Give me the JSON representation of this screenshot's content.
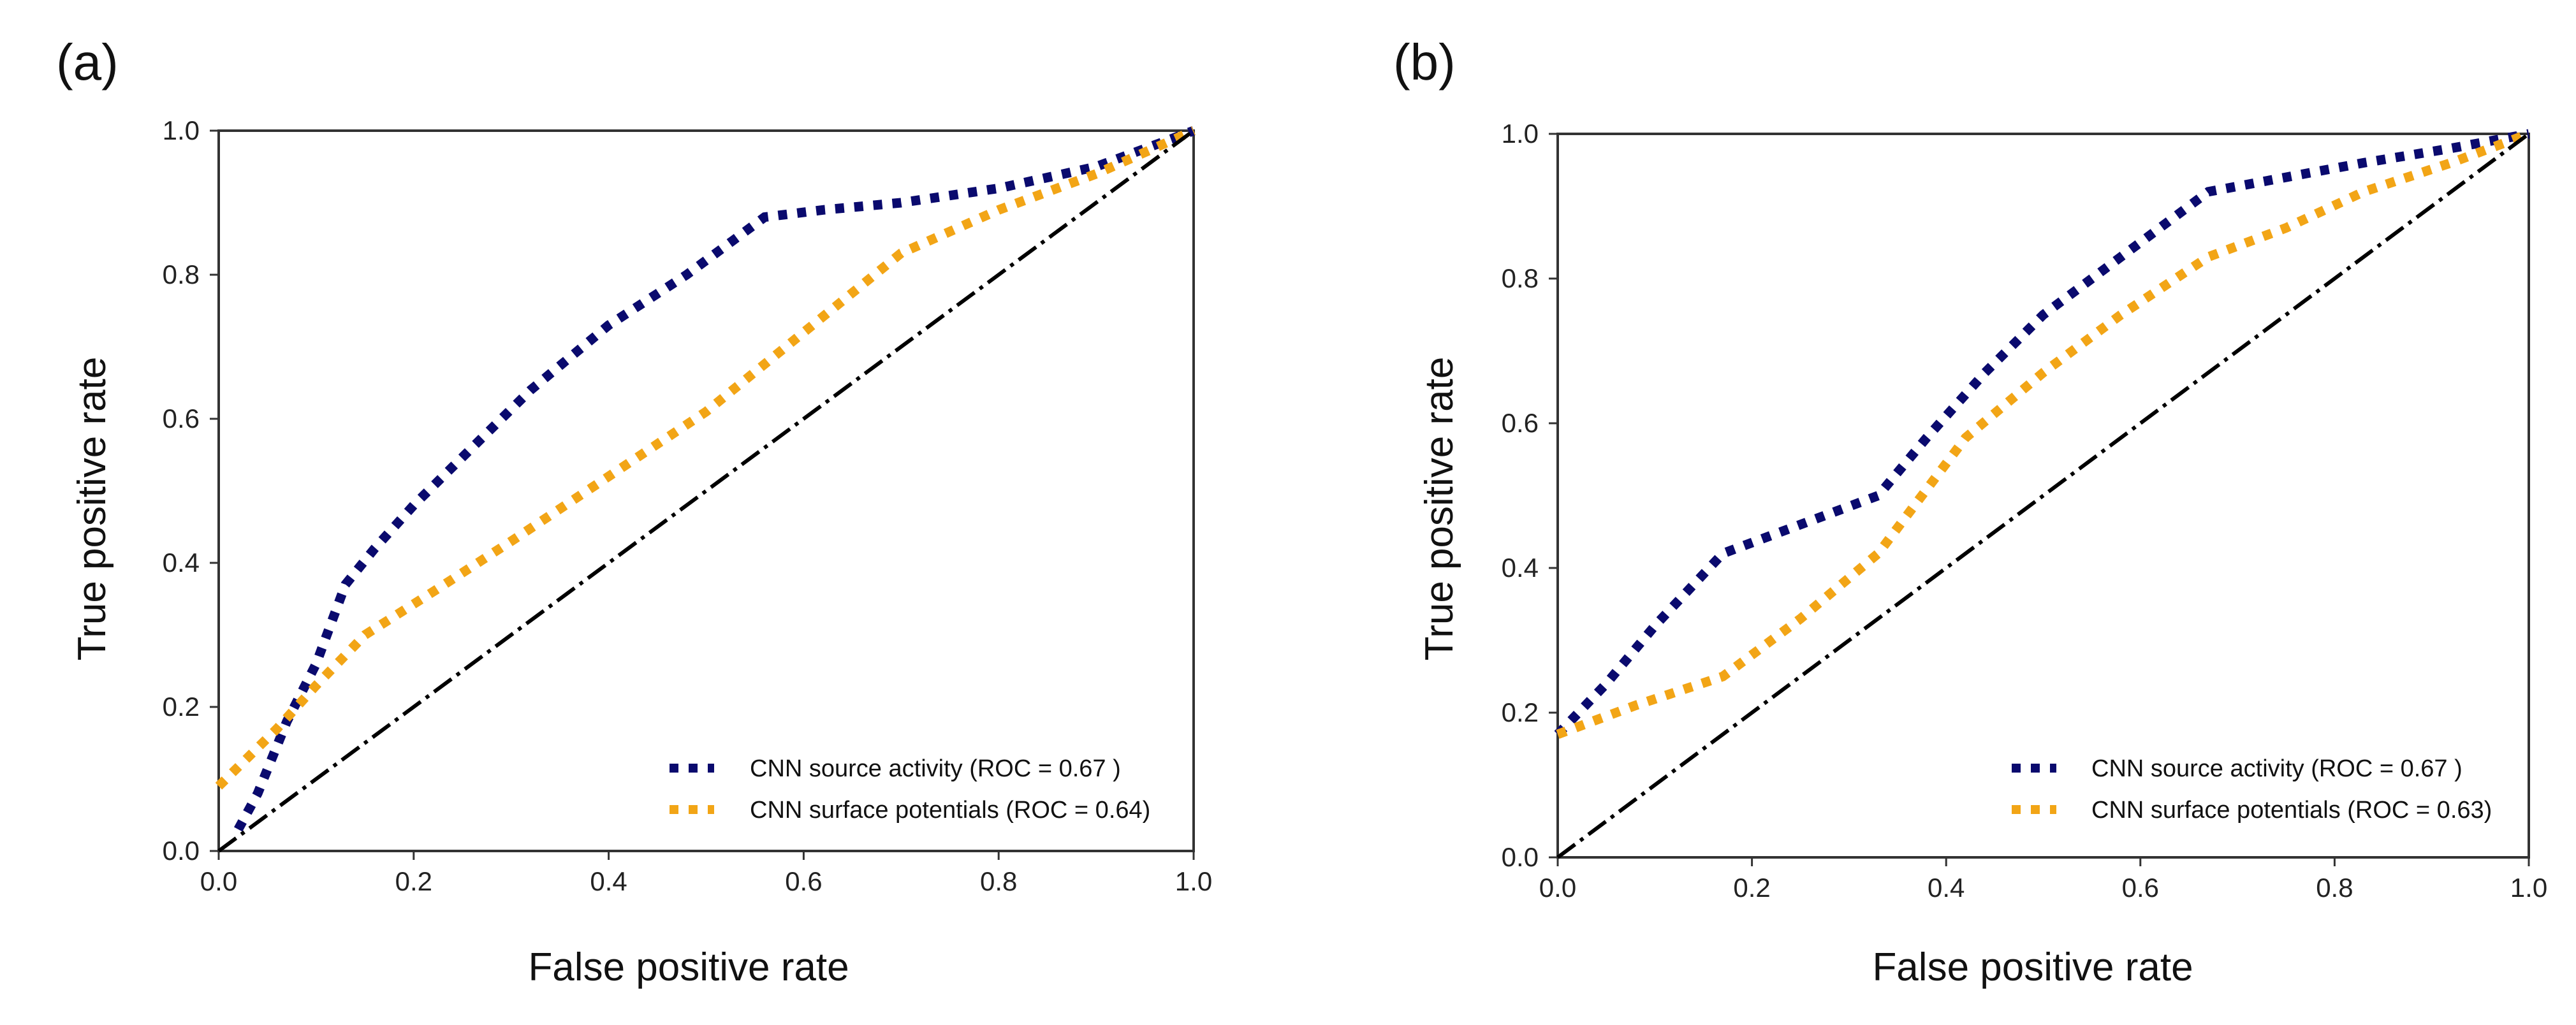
{
  "colors": {
    "source_activity": "#0a0a6e",
    "surface_potentials": "#f2a516",
    "chance_line": "#000000",
    "axes": "#333333"
  },
  "chart_data": [
    {
      "type": "line",
      "panel_label": "(a)",
      "xlabel": "False positive rate",
      "ylabel": "True positive rate",
      "xlim": [
        0,
        1
      ],
      "ylim": [
        0,
        1
      ],
      "xticks": [
        "0.0",
        "0.2",
        "0.4",
        "0.6",
        "0.8",
        "1.0"
      ],
      "yticks": [
        "0.0",
        "0.2",
        "0.4",
        "0.6",
        "0.8",
        "1.0"
      ],
      "grid": false,
      "legend_position": "bottom-right",
      "series": [
        {
          "name": "CNN source activity (ROC = 0.67 )",
          "style": "dotted",
          "color_key": "source_activity",
          "x": [
            0.02,
            0.04,
            0.07,
            0.1,
            0.13,
            0.16,
            0.2,
            0.26,
            0.32,
            0.4,
            0.48,
            0.56,
            0.62,
            0.7,
            0.8,
            0.9,
            1.0
          ],
          "y": [
            0.03,
            0.08,
            0.18,
            0.26,
            0.37,
            0.42,
            0.48,
            0.56,
            0.64,
            0.73,
            0.8,
            0.88,
            0.89,
            0.9,
            0.92,
            0.95,
            1.0
          ]
        },
        {
          "name": "CNN surface potentials (ROC = 0.64)",
          "style": "dotted",
          "color_key": "surface_potentials",
          "x": [
            0.0,
            0.03,
            0.06,
            0.1,
            0.15,
            0.22,
            0.3,
            0.4,
            0.5,
            0.6,
            0.7,
            0.8,
            0.9,
            1.0
          ],
          "y": [
            0.09,
            0.13,
            0.17,
            0.23,
            0.3,
            0.36,
            0.43,
            0.52,
            0.61,
            0.72,
            0.83,
            0.89,
            0.94,
            1.0
          ]
        },
        {
          "name": "",
          "style": "dashdot",
          "color_key": "chance_line",
          "x": [
            0,
            1
          ],
          "y": [
            0,
            1
          ]
        }
      ]
    },
    {
      "type": "line",
      "panel_label": "(b)",
      "xlabel": "False positive rate",
      "ylabel": "True positive rate",
      "xlim": [
        0,
        1
      ],
      "ylim": [
        0,
        1
      ],
      "xticks": [
        "0.0",
        "0.2",
        "0.4",
        "0.6",
        "0.8",
        "1.0"
      ],
      "yticks": [
        "0.0",
        "0.2",
        "0.4",
        "0.6",
        "0.8",
        "1.0"
      ],
      "grid": false,
      "legend_position": "bottom-right",
      "series": [
        {
          "name": "CNN source activity (ROC = 0.67 )",
          "style": "dotted",
          "color_key": "source_activity",
          "x": [
            0.0,
            0.05,
            0.1,
            0.17,
            0.25,
            0.33,
            0.38,
            0.44,
            0.5,
            0.58,
            0.67,
            0.75,
            0.83,
            0.92,
            1.0
          ],
          "y": [
            0.17,
            0.24,
            0.32,
            0.42,
            0.46,
            0.5,
            0.58,
            0.67,
            0.75,
            0.83,
            0.92,
            0.94,
            0.96,
            0.98,
            1.0
          ]
        },
        {
          "name": "CNN surface potentials (ROC = 0.63)",
          "style": "dotted",
          "color_key": "surface_potentials",
          "x": [
            0.0,
            0.08,
            0.17,
            0.25,
            0.33,
            0.42,
            0.5,
            0.58,
            0.67,
            0.75,
            0.83,
            0.92,
            1.0
          ],
          "y": [
            0.17,
            0.21,
            0.25,
            0.33,
            0.42,
            0.58,
            0.67,
            0.75,
            0.83,
            0.87,
            0.92,
            0.96,
            1.0
          ]
        },
        {
          "name": "",
          "style": "dashdot",
          "color_key": "chance_line",
          "x": [
            0,
            1
          ],
          "y": [
            0,
            1
          ]
        }
      ]
    }
  ]
}
